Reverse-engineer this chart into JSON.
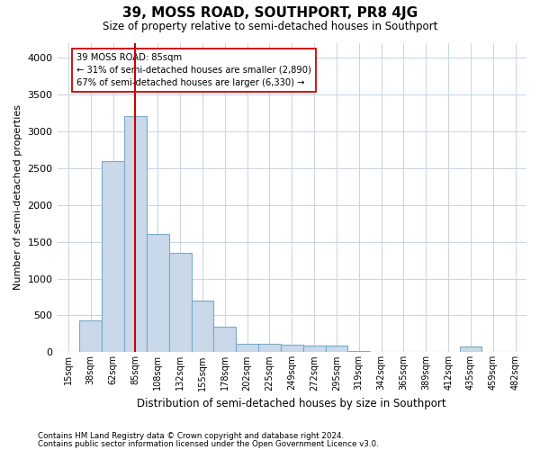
{
  "title": "39, MOSS ROAD, SOUTHPORT, PR8 4JG",
  "subtitle": "Size of property relative to semi-detached houses in Southport",
  "xlabel": "Distribution of semi-detached houses by size in Southport",
  "ylabel": "Number of semi-detached properties",
  "footer_line1": "Contains HM Land Registry data © Crown copyright and database right 2024.",
  "footer_line2": "Contains public sector information licensed under the Open Government Licence v3.0.",
  "annotation_title": "39 MOSS ROAD: 85sqm",
  "annotation_line1": "← 31% of semi-detached houses are smaller (2,890)",
  "annotation_line2": "67% of semi-detached houses are larger (6,330) →",
  "bar_color": "#c9d9ea",
  "bar_edge_color": "#7aaac8",
  "vline_color": "#cc0000",
  "annotation_box_facecolor": "#ffffff",
  "annotation_box_edgecolor": "#cc0000",
  "grid_color": "#c8d4e4",
  "background_color": "#ffffff",
  "categories": [
    "15sqm",
    "38sqm",
    "62sqm",
    "85sqm",
    "108sqm",
    "132sqm",
    "155sqm",
    "178sqm",
    "202sqm",
    "225sqm",
    "249sqm",
    "272sqm",
    "295sqm",
    "319sqm",
    "342sqm",
    "365sqm",
    "389sqm",
    "412sqm",
    "435sqm",
    "459sqm",
    "482sqm"
  ],
  "values": [
    10,
    430,
    2600,
    3200,
    1600,
    1350,
    700,
    350,
    120,
    120,
    100,
    90,
    85,
    15,
    10,
    10,
    10,
    10,
    80,
    10,
    10
  ],
  "prop_category": "85sqm",
  "ylim": [
    0,
    4200
  ],
  "yticks": [
    0,
    500,
    1000,
    1500,
    2000,
    2500,
    3000,
    3500,
    4000
  ]
}
